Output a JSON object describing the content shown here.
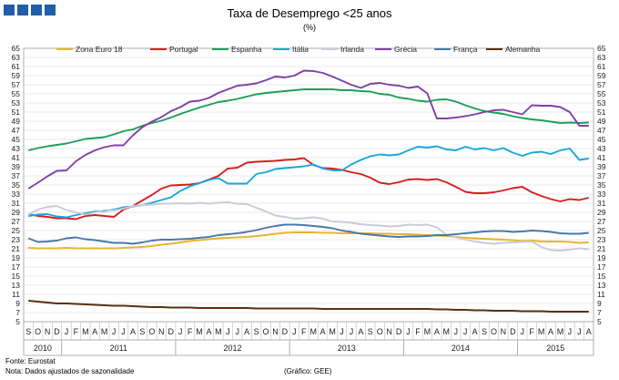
{
  "header": {
    "title": "Taxa de Desemprego <25 anos",
    "subtitle": "(%)"
  },
  "footer": {
    "source": "Fonte: Eurostat",
    "note": "Nota: Dados ajustados de sazonalidade",
    "credit": "(Gráfico: GEE)"
  },
  "chart_data": {
    "type": "line",
    "title": "Taxa de Desemprego <25 anos",
    "subtitle": "(%)",
    "ylim": [
      5,
      65
    ],
    "yticks": [
      5,
      7,
      9,
      11,
      13,
      15,
      17,
      19,
      21,
      23,
      25,
      27,
      29,
      31,
      33,
      35,
      37,
      39,
      41,
      43,
      45,
      47,
      49,
      51,
      53,
      55,
      57,
      59,
      61,
      63,
      65
    ],
    "grid": true,
    "legend_position": "top",
    "x": [
      "2010-09",
      "2010-10",
      "2010-11",
      "2010-12",
      "2011-01",
      "2011-02",
      "2011-03",
      "2011-04",
      "2011-05",
      "2011-06",
      "2011-07",
      "2011-08",
      "2011-09",
      "2011-10",
      "2011-11",
      "2011-12",
      "2012-01",
      "2012-02",
      "2012-03",
      "2012-04",
      "2012-05",
      "2012-06",
      "2012-07",
      "2012-08",
      "2012-09",
      "2012-10",
      "2012-11",
      "2012-12",
      "2013-01",
      "2013-02",
      "2013-03",
      "2013-04",
      "2013-05",
      "2013-06",
      "2013-07",
      "2013-08",
      "2013-09",
      "2013-10",
      "2013-11",
      "2013-12",
      "2014-01",
      "2014-02",
      "2014-03",
      "2014-04",
      "2014-05",
      "2014-06",
      "2014-07",
      "2014-08",
      "2014-09",
      "2014-10",
      "2014-11",
      "2014-12",
      "2015-01",
      "2015-02",
      "2015-03",
      "2015-04",
      "2015-05",
      "2015-06",
      "2015-07",
      "2015-08"
    ],
    "x_month_labels": [
      "S",
      "O",
      "N",
      "D",
      "J",
      "F",
      "M",
      "A",
      "M",
      "J",
      "J",
      "A",
      "S",
      "O",
      "N",
      "D",
      "J",
      "F",
      "M",
      "A",
      "M",
      "J",
      "J",
      "A",
      "S",
      "O",
      "N",
      "D",
      "J",
      "F",
      "M",
      "A",
      "M",
      "J",
      "J",
      "A",
      "S",
      "O",
      "N",
      "D",
      "J",
      "F",
      "M",
      "A",
      "M",
      "J",
      "J",
      "A",
      "S",
      "O",
      "N",
      "D",
      "J",
      "F",
      "M",
      "A",
      "M",
      "J",
      "J",
      "A"
    ],
    "x_year_labels": [
      {
        "label": "2010",
        "start": 0,
        "end": 4
      },
      {
        "label": "2011",
        "start": 4,
        "end": 16
      },
      {
        "label": "2012",
        "start": 16,
        "end": 28
      },
      {
        "label": "2013",
        "start": 28,
        "end": 40
      },
      {
        "label": "2014",
        "start": 40,
        "end": 52
      },
      {
        "label": "2015",
        "start": 52,
        "end": 60
      }
    ],
    "series": [
      {
        "name": "Zona Euro 18",
        "color": "#e8b430",
        "values": [
          21.2,
          21.1,
          21.1,
          21.1,
          21.2,
          21.1,
          21.1,
          21.1,
          21.1,
          21.1,
          21.2,
          21.3,
          21.4,
          21.6,
          21.9,
          22.1,
          22.4,
          22.7,
          22.9,
          23.1,
          23.3,
          23.4,
          23.5,
          23.6,
          23.8,
          24.0,
          24.3,
          24.5,
          24.6,
          24.6,
          24.6,
          24.5,
          24.5,
          24.4,
          24.4,
          24.4,
          24.4,
          24.3,
          24.3,
          24.2,
          24.2,
          24.1,
          24.0,
          23.9,
          23.8,
          23.6,
          23.4,
          23.3,
          23.2,
          23.1,
          23.0,
          22.9,
          22.7,
          22.8,
          22.6,
          22.6,
          22.6,
          22.5,
          22.3,
          22.4
        ]
      },
      {
        "name": "Portugal",
        "color": "#d42020",
        "values": [
          28.6,
          28.2,
          28.0,
          27.7,
          27.7,
          27.5,
          28.2,
          28.4,
          28.2,
          28.0,
          29.6,
          30.4,
          31.6,
          32.8,
          34.2,
          34.9,
          35.0,
          35.1,
          35.4,
          36.2,
          37.0,
          38.6,
          38.8,
          39.9,
          40.1,
          40.2,
          40.3,
          40.5,
          40.6,
          40.9,
          39.4,
          38.7,
          38.6,
          38.3,
          37.8,
          37.4,
          36.6,
          35.5,
          35.2,
          35.6,
          36.2,
          36.3,
          36.1,
          36.3,
          35.6,
          34.6,
          33.5,
          33.2,
          33.2,
          33.4,
          33.8,
          34.3,
          34.6,
          33.4,
          32.6,
          31.9,
          31.4,
          31.9,
          31.7,
          32.2
        ]
      },
      {
        "name": "Espanha",
        "color": "#1e9e5a",
        "values": [
          42.6,
          43.1,
          43.5,
          43.8,
          44.1,
          44.6,
          45.1,
          45.3,
          45.5,
          46.1,
          46.8,
          47.2,
          48.0,
          48.6,
          49.1,
          49.8,
          50.6,
          51.3,
          52.0,
          52.6,
          53.2,
          53.5,
          53.9,
          54.4,
          54.9,
          55.2,
          55.4,
          55.6,
          55.8,
          56.0,
          56.0,
          56.0,
          56.0,
          55.8,
          55.8,
          55.6,
          55.5,
          55.0,
          54.8,
          54.2,
          53.9,
          53.5,
          53.3,
          53.7,
          53.8,
          53.3,
          52.5,
          51.8,
          51.2,
          50.9,
          50.6,
          50.1,
          49.7,
          49.4,
          49.2,
          48.9,
          48.6,
          48.7,
          48.6,
          48.7
        ]
      },
      {
        "name": "Itália",
        "color": "#18a8dc",
        "values": [
          28.2,
          28.5,
          28.6,
          28.1,
          27.9,
          28.4,
          28.8,
          29.2,
          29.3,
          29.6,
          30.1,
          30.3,
          30.6,
          31.1,
          31.7,
          32.3,
          33.7,
          34.7,
          35.4,
          36.1,
          36.5,
          35.3,
          35.3,
          35.3,
          37.4,
          37.8,
          38.5,
          38.7,
          38.9,
          39.1,
          39.5,
          38.6,
          38.2,
          38.2,
          39.5,
          40.5,
          41.3,
          41.7,
          41.5,
          41.7,
          42.6,
          43.4,
          43.2,
          43.5,
          42.8,
          42.6,
          43.4,
          42.8,
          43.1,
          42.6,
          43.1,
          42.1,
          41.4,
          42.1,
          42.3,
          41.8,
          42.6,
          43.0,
          40.5,
          40.8
        ]
      },
      {
        "name": "Irlanda",
        "color": "#c8ccd8",
        "values": [
          28.5,
          29.6,
          30.2,
          30.4,
          29.5,
          29.0,
          28.5,
          29.0,
          29.5,
          29.4,
          29.8,
          30.4,
          30.6,
          30.7,
          30.9,
          30.9,
          31.0,
          30.9,
          31.1,
          30.9,
          31.1,
          31.2,
          30.9,
          30.8,
          30.0,
          29.2,
          28.3,
          28.0,
          27.6,
          27.7,
          27.9,
          27.6,
          27.0,
          26.9,
          26.7,
          26.4,
          26.2,
          26.1,
          25.9,
          26.0,
          26.3,
          26.2,
          26.3,
          25.7,
          24.1,
          23.5,
          23.0,
          22.6,
          22.3,
          22.1,
          22.3,
          22.4,
          22.5,
          22.6,
          21.4,
          20.7,
          20.6,
          20.8,
          21.1,
          20.9
        ]
      },
      {
        "name": "Grécia",
        "color": "#8040a8",
        "values": [
          34.2,
          35.5,
          36.9,
          38.1,
          38.2,
          40.2,
          41.6,
          42.6,
          43.3,
          43.7,
          43.7,
          45.9,
          47.7,
          48.9,
          49.9,
          51.2,
          52.1,
          53.3,
          53.5,
          54.1,
          55.2,
          56.0,
          56.8,
          57.0,
          57.3,
          58.0,
          58.8,
          58.6,
          59.0,
          60.1,
          60.0,
          59.6,
          58.8,
          57.9,
          57.0,
          56.3,
          57.2,
          57.4,
          57.0,
          56.8,
          56.3,
          56.6,
          55.1,
          49.6,
          49.6,
          49.8,
          50.1,
          50.5,
          51.0,
          51.4,
          51.5,
          51.0,
          50.5,
          52.5,
          52.4,
          52.4,
          52.1,
          51.0,
          48.0,
          48.0
        ]
      },
      {
        "name": "França",
        "color": "#4a78a8",
        "values": [
          23.3,
          22.5,
          22.6,
          22.8,
          23.3,
          23.5,
          23.1,
          22.9,
          22.6,
          22.3,
          22.3,
          22.1,
          22.4,
          22.8,
          23.0,
          23.0,
          23.1,
          23.2,
          23.4,
          23.6,
          24.0,
          24.2,
          24.4,
          24.7,
          25.1,
          25.6,
          26.0,
          26.3,
          26.3,
          26.2,
          26.0,
          25.8,
          25.5,
          25.0,
          24.7,
          24.3,
          24.1,
          23.9,
          23.7,
          23.6,
          23.7,
          23.7,
          23.8,
          24.0,
          24.0,
          24.2,
          24.4,
          24.6,
          24.8,
          24.9,
          24.9,
          24.7,
          24.8,
          25.0,
          24.9,
          24.7,
          24.4,
          24.3,
          24.3,
          24.5
        ]
      },
      {
        "name": "Alemanha",
        "color": "#5a3010",
        "values": [
          9.6,
          9.4,
          9.2,
          9.0,
          9.0,
          8.9,
          8.8,
          8.7,
          8.6,
          8.5,
          8.5,
          8.4,
          8.3,
          8.2,
          8.2,
          8.1,
          8.1,
          8.1,
          8.0,
          8.0,
          8.0,
          8.0,
          8.0,
          8.0,
          7.9,
          7.9,
          7.9,
          7.9,
          7.9,
          7.9,
          7.9,
          7.8,
          7.8,
          7.8,
          7.8,
          7.8,
          7.8,
          7.8,
          7.8,
          7.8,
          7.8,
          7.8,
          7.8,
          7.7,
          7.7,
          7.6,
          7.6,
          7.5,
          7.5,
          7.4,
          7.4,
          7.4,
          7.3,
          7.3,
          7.3,
          7.2,
          7.2,
          7.2,
          7.2,
          7.2
        ]
      }
    ]
  }
}
